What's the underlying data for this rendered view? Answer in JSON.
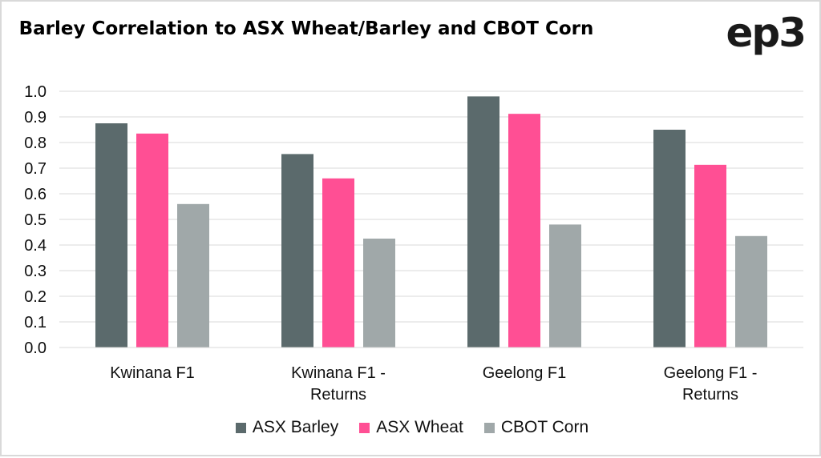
{
  "chart_data": {
    "type": "bar",
    "title": "Barley Correlation to ASX Wheat/Barley and CBOT Corn",
    "categories": [
      "Kwinana F1",
      "Kwinana F1 - Returns",
      "Geelong F1",
      "Geelong F1 - Returns"
    ],
    "series": [
      {
        "name": "ASX Barley",
        "color": "#5b6a6c",
        "values": [
          0.875,
          0.755,
          0.98,
          0.85
        ]
      },
      {
        "name": "ASX Wheat",
        "color": "#ff4f94",
        "values": [
          0.835,
          0.66,
          0.912,
          0.713
        ]
      },
      {
        "name": "CBOT Corn",
        "color": "#a0a8a9",
        "values": [
          0.56,
          0.425,
          0.48,
          0.435
        ]
      }
    ],
    "ylim": [
      0,
      1.0
    ],
    "yticks": [
      "0.0",
      "0.1",
      "0.2",
      "0.3",
      "0.4",
      "0.5",
      "0.6",
      "0.7",
      "0.8",
      "0.9",
      "1.0"
    ],
    "grid": true,
    "legend_position": "bottom"
  },
  "logo_text": "ep3"
}
